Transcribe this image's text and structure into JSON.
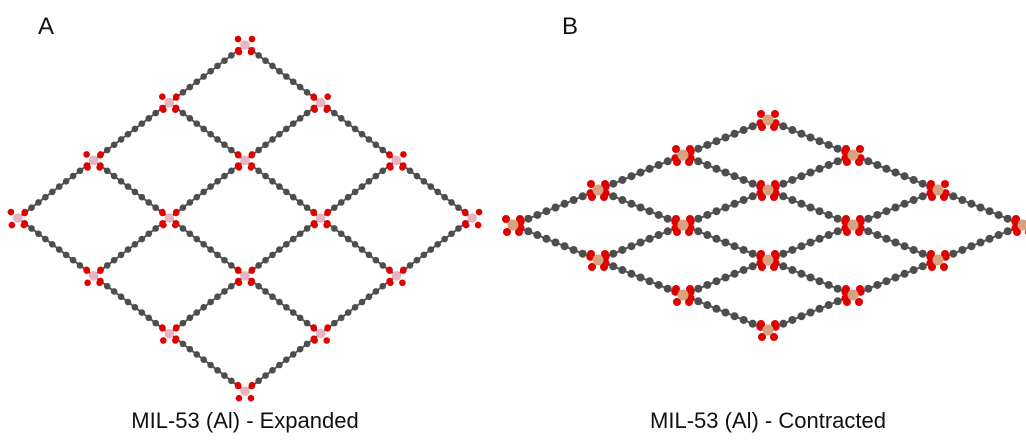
{
  "panels": [
    {
      "letter": "A",
      "caption": "MIL-53 (Al) - Expanded"
    },
    {
      "letter": "B",
      "caption": "MIL-53 (Al) - Contracted"
    }
  ]
}
